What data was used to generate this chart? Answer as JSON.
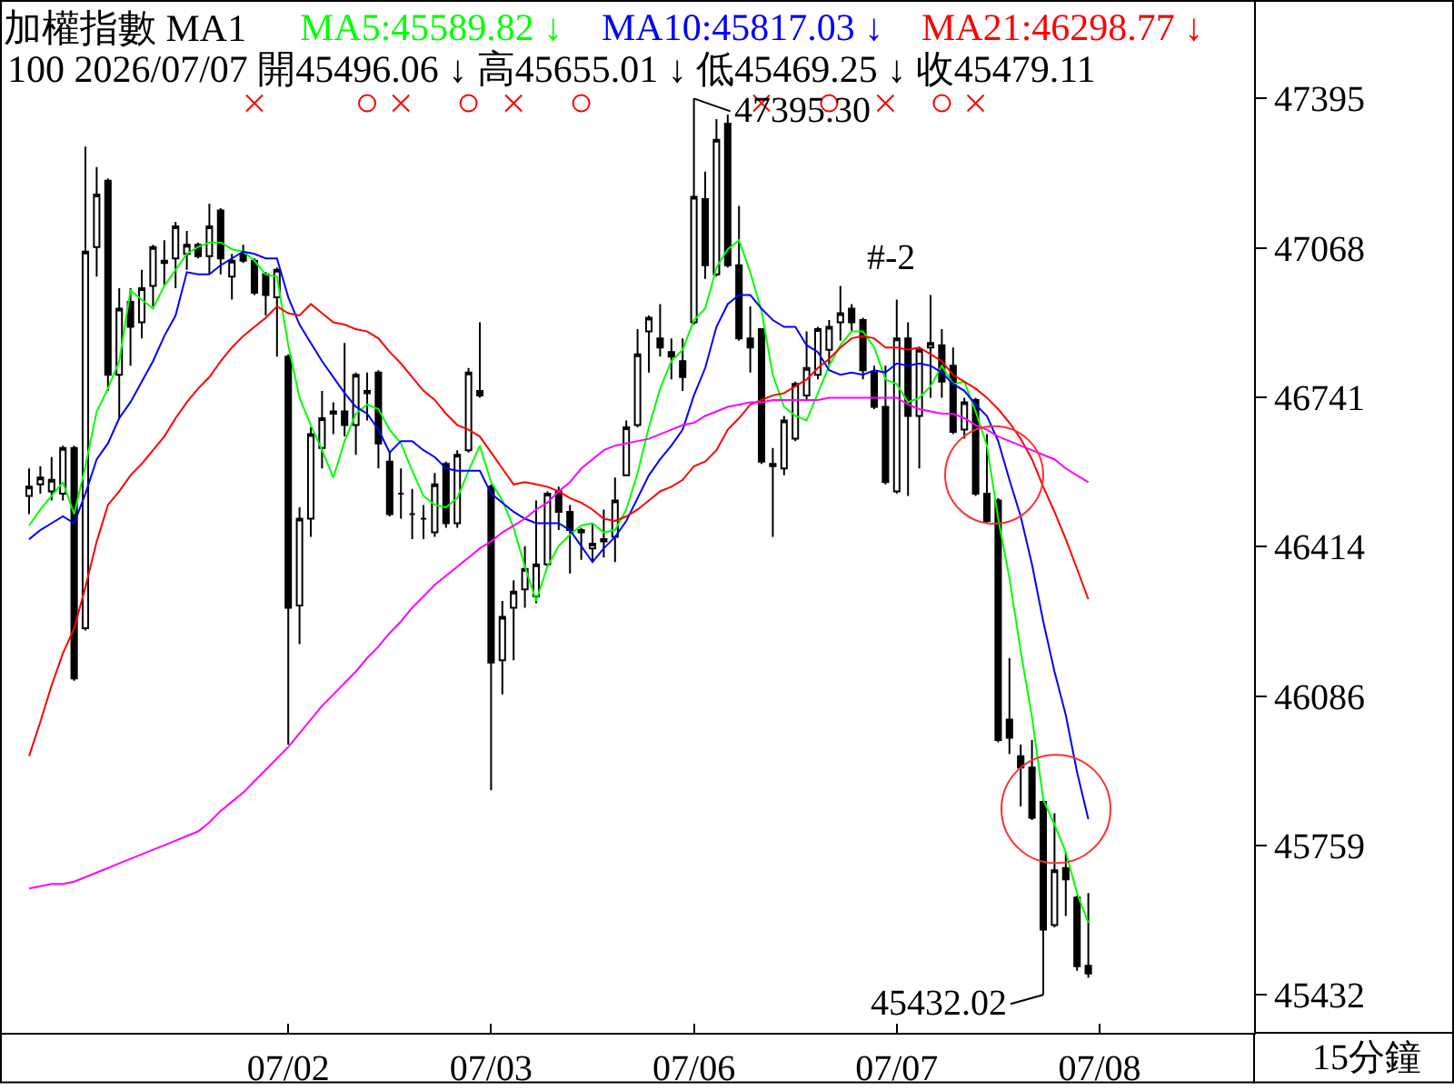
{
  "chart_data": {
    "type": "candlestick",
    "title": "加權指數 MA1",
    "subtitle": "100 2026/07/07 開45496.06 ↓ 高45655.01 ↓ 低45469.25 ↓ 收45479.11",
    "categories": [
      null,
      null,
      null,
      null,
      null,
      null,
      null,
      null,
      null,
      null,
      null,
      null,
      null,
      null,
      null,
      null,
      null,
      null,
      null,
      null,
      null,
      null,
      null,
      "07/02",
      null,
      null,
      null,
      null,
      null,
      null,
      null,
      null,
      null,
      null,
      null,
      null,
      null,
      null,
      null,
      null,
      null,
      "07/03",
      null,
      null,
      null,
      null,
      null,
      null,
      null,
      null,
      null,
      null,
      null,
      null,
      null,
      null,
      null,
      null,
      null,
      "07/06",
      null,
      null,
      null,
      null,
      null,
      null,
      null,
      null,
      null,
      null,
      null,
      null,
      null,
      null,
      null,
      null,
      null,
      "07/07",
      null,
      null,
      null,
      null,
      null,
      null,
      null,
      null,
      null,
      null,
      null,
      null,
      null,
      null,
      null,
      null,
      null,
      "07/08"
    ],
    "color": "#000000",
    "ohlc": [
      [
        46525,
        46585,
        46485,
        46545
      ],
      [
        46550,
        46590,
        46530,
        46565
      ],
      [
        46535,
        46610,
        46515,
        46560
      ],
      [
        46530,
        46635,
        46515,
        46630
      ],
      [
        46630,
        46635,
        46120,
        46125
      ],
      [
        46235,
        47290,
        46230,
        47060
      ],
      [
        47070,
        47245,
        47005,
        47185
      ],
      [
        47215,
        47220,
        46755,
        46790
      ],
      [
        46790,
        46980,
        46695,
        46935
      ],
      [
        46950,
        46980,
        46810,
        46895
      ],
      [
        46905,
        47020,
        46870,
        46980
      ],
      [
        46985,
        47075,
        46940,
        47070
      ],
      [
        47035,
        47085,
        46985,
        47040
      ],
      [
        47045,
        47125,
        46980,
        47115
      ],
      [
        47055,
        47105,
        47020,
        47075
      ],
      [
        47075,
        47080,
        47045,
        47050
      ],
      [
        47050,
        47165,
        47010,
        47115
      ],
      [
        47150,
        47155,
        47010,
        47045
      ],
      [
        47005,
        47055,
        46955,
        47040
      ],
      [
        47055,
        47075,
        47035,
        47040
      ],
      [
        47040,
        47045,
        46965,
        46970
      ],
      [
        47010,
        47015,
        46920,
        46965
      ],
      [
        46960,
        47025,
        46830,
        47020
      ],
      [
        46830,
        46835,
        45980,
        46280
      ],
      [
        46285,
        46500,
        46200,
        46475
      ],
      [
        46475,
        46675,
        46435,
        46660
      ],
      [
        46630,
        46755,
        46585,
        46695
      ],
      [
        46705,
        46730,
        46660,
        46710
      ],
      [
        46710,
        46860,
        46655,
        46680
      ],
      [
        46680,
        46795,
        46615,
        46790
      ],
      [
        46750,
        46795,
        46690,
        46755
      ],
      [
        46795,
        46800,
        46585,
        46640
      ],
      [
        46600,
        46620,
        46480,
        46485
      ],
      [
        46530,
        46585,
        46475,
        46530
      ],
      [
        46485,
        46540,
        46430,
        46485
      ],
      [
        46475,
        46505,
        46430,
        46475
      ],
      [
        46445,
        46575,
        46435,
        46550
      ],
      [
        46595,
        46600,
        46455,
        46465
      ],
      [
        46465,
        46625,
        46455,
        46615
      ],
      [
        46625,
        46805,
        46620,
        46795
      ],
      [
        46755,
        46905,
        46740,
        46745
      ],
      [
        46545,
        46550,
        45880,
        46160
      ],
      [
        46165,
        46295,
        46090,
        46260
      ],
      [
        46280,
        46340,
        46165,
        46315
      ],
      [
        46320,
        46415,
        46280,
        46365
      ],
      [
        46305,
        46515,
        46290,
        46375
      ],
      [
        46375,
        46535,
        46370,
        46530
      ],
      [
        46535,
        46545,
        46450,
        46490
      ],
      [
        46490,
        46505,
        46355,
        46450
      ],
      [
        46450,
        46455,
        46385,
        46445
      ],
      [
        46410,
        46465,
        46380,
        46420
      ],
      [
        46425,
        46495,
        46390,
        46430
      ],
      [
        46435,
        46565,
        46380,
        46515
      ],
      [
        46570,
        46690,
        46570,
        46675
      ],
      [
        46680,
        46890,
        46675,
        46835
      ],
      [
        46885,
        46920,
        46795,
        46915
      ],
      [
        46870,
        46945,
        46830,
        46850
      ],
      [
        46840,
        46870,
        46780,
        46830
      ],
      [
        46820,
        46870,
        46755,
        46785
      ],
      [
        46905,
        47395.3,
        46900,
        47180
      ],
      [
        47175,
        47235,
        47000,
        47030
      ],
      [
        47010,
        47350,
        47005,
        47305
      ],
      [
        47340,
        47360,
        47025,
        47030
      ],
      [
        47030,
        47160,
        46865,
        46870
      ],
      [
        46870,
        46940,
        46795,
        46850
      ],
      [
        46890,
        46890,
        46595,
        46600
      ],
      [
        46595,
        46630,
        46435,
        46590
      ],
      [
        46585,
        46700,
        46570,
        46690
      ],
      [
        46650,
        46775,
        46645,
        46770
      ],
      [
        46745,
        46885,
        46735,
        46805
      ],
      [
        46790,
        46895,
        46780,
        46890
      ],
      [
        46845,
        46910,
        46810,
        46895
      ],
      [
        46905,
        46985,
        46865,
        46925
      ],
      [
        46935,
        46945,
        46885,
        46905
      ],
      [
        46910,
        46915,
        46780,
        46800
      ],
      [
        46795,
        46810,
        46715,
        46720
      ],
      [
        46720,
        46810,
        46550,
        46555
      ],
      [
        46535,
        46955,
        46530,
        46870
      ],
      [
        46870,
        46905,
        46525,
        46700
      ],
      [
        46700,
        46850,
        46585,
        46845
      ],
      [
        46850,
        46965,
        46740,
        46860
      ],
      [
        46855,
        46890,
        46740,
        46775
      ],
      [
        46810,
        46850,
        46660,
        46665
      ],
      [
        46670,
        46740,
        46650,
        46730
      ],
      [
        46735,
        46740,
        46525,
        46530
      ],
      [
        46530,
        46660,
        46465,
        46470
      ],
      [
        46515,
        46520,
        45985,
        45990
      ],
      [
        46035,
        46170,
        45960,
        45995
      ],
      [
        45955,
        45980,
        45845,
        45930
      ],
      [
        45930,
        45990,
        45815,
        45820
      ],
      [
        45855,
        45860,
        45432.02,
        45575
      ],
      [
        45585,
        45830,
        45580,
        45705
      ],
      [
        45710,
        45745,
        45605,
        45685
      ],
      [
        45645,
        45650,
        45485,
        45495
      ],
      [
        45496.06,
        45655.01,
        45469.25,
        45479.11
      ],
      null
    ],
    "series": [
      {
        "type": "line",
        "name": "MA5:45589.82 ↓",
        "color": "#00ff00",
        "values": [
          46460,
          46495,
          46525,
          46555,
          46485,
          46590,
          46710,
          46760,
          46820,
          46975,
          46955,
          46935,
          46985,
          47020,
          47055,
          47070,
          47080,
          47080,
          47065,
          47060,
          47040,
          47010,
          47005,
          46855,
          46740,
          46680,
          46625,
          46565,
          46645,
          46705,
          46725,
          46715,
          46670,
          46640,
          46580,
          46525,
          46505,
          46500,
          46520,
          46580,
          46635,
          46555,
          46515,
          46455,
          46370,
          46295,
          46370,
          46415,
          46440,
          46460,
          46465,
          46445,
          46450,
          46495,
          46575,
          46675,
          46760,
          46820,
          46845,
          46910,
          46935,
          47025,
          47065,
          47085,
          47015,
          46930,
          46790,
          46720,
          46700,
          46690,
          46750,
          46810,
          46855,
          46885,
          46885,
          46850,
          46780,
          46770,
          46730,
          46740,
          46765,
          46810,
          46770,
          46775,
          46710,
          46635,
          46475,
          46345,
          46185,
          46040,
          45860,
          45805,
          45745,
          45655,
          45589.82,
          null
        ]
      },
      {
        "type": "line",
        "name": "MA10:45817.03 ↓",
        "color": "#0000ff",
        "values": [
          46430,
          46450,
          46465,
          46480,
          46465,
          46530,
          46605,
          46640,
          46695,
          46730,
          46775,
          46820,
          46875,
          46920,
          47015,
          47010,
          47010,
          47030,
          47045,
          47060,
          47055,
          47045,
          47045,
          46960,
          46900,
          46860,
          46820,
          46785,
          46750,
          46720,
          46705,
          46670,
          46620,
          46645,
          46645,
          46625,
          46610,
          46585,
          46580,
          46580,
          46580,
          46530,
          46510,
          46490,
          46475,
          46465,
          46465,
          46465,
          46450,
          46415,
          46380,
          46410,
          46435,
          46470,
          46520,
          46570,
          46605,
          46635,
          46670,
          46745,
          46805,
          46895,
          46945,
          46965,
          46965,
          46935,
          46910,
          46895,
          46895,
          46855,
          46840,
          46800,
          46790,
          46795,
          46790,
          46800,
          46795,
          46815,
          46810,
          46815,
          46810,
          46795,
          46770,
          46755,
          46725,
          46700,
          46645,
          46560,
          46480,
          46375,
          46250,
          46140,
          46045,
          45920,
          45817.03,
          null
        ]
      },
      {
        "type": "line",
        "name": "MA21:46298.77 ↓",
        "color": "#ff0000",
        "values": [
          45955,
          46030,
          46110,
          46180,
          46235,
          46325,
          46425,
          46505,
          46535,
          46570,
          46595,
          46625,
          46655,
          46695,
          46730,
          46760,
          46785,
          46820,
          46850,
          46875,
          46895,
          46915,
          46940,
          46925,
          46920,
          46945,
          46925,
          46905,
          46900,
          46890,
          46885,
          46870,
          46840,
          46815,
          46785,
          46755,
          46735,
          46705,
          46680,
          46670,
          46655,
          46620,
          46585,
          46550,
          46555,
          46550,
          46545,
          46535,
          46520,
          46510,
          46495,
          46475,
          46470,
          46480,
          46495,
          46515,
          46535,
          46545,
          46560,
          46590,
          46600,
          46625,
          46670,
          46695,
          46725,
          46735,
          46745,
          46750,
          46765,
          46780,
          46805,
          46825,
          46850,
          46870,
          46875,
          46870,
          46850,
          46850,
          46845,
          46850,
          46835,
          46820,
          46790,
          46775,
          46760,
          46740,
          46715,
          46685,
          46650,
          46605,
          46545,
          46490,
          46430,
          46365,
          46298.77,
          null
        ]
      },
      {
        "type": "line",
        "color": "#ff00ff",
        "values": [
          45665,
          45670,
          45675,
          45675,
          45680,
          45690,
          45700,
          45710,
          45720,
          45730,
          45740,
          45750,
          45760,
          45770,
          45780,
          45790,
          45810,
          45835,
          45855,
          45875,
          45900,
          45925,
          45950,
          45975,
          46005,
          46035,
          46065,
          46090,
          46115,
          46140,
          46170,
          46195,
          46225,
          46250,
          46280,
          46305,
          46330,
          46350,
          46370,
          46390,
          46410,
          46425,
          46445,
          46460,
          46475,
          46495,
          46510,
          46535,
          46555,
          46585,
          46605,
          46625,
          46635,
          46640,
          46645,
          46650,
          46660,
          46670,
          46680,
          46685,
          46700,
          46710,
          46720,
          46725,
          46730,
          46730,
          46735,
          46735,
          46735,
          46735,
          46735,
          46740,
          46740,
          46740,
          46740,
          46740,
          46740,
          46740,
          46725,
          46715,
          46710,
          46705,
          46705,
          46695,
          46680,
          46670,
          46655,
          46645,
          46635,
          46625,
          46615,
          46605,
          46585,
          46570,
          46555,
          null
        ]
      },
      {
        "type": "scatter",
        "marker": "cross",
        "color": "#ff0000",
        "values": [
          null,
          null,
          null,
          null,
          null,
          null,
          null,
          null,
          null,
          null,
          null,
          null,
          null,
          null,
          null,
          null,
          null,
          null,
          null,
          null,
          47385,
          null,
          null,
          null,
          null,
          null,
          null,
          null,
          null,
          null,
          null,
          null,
          null,
          47385,
          null,
          null,
          null,
          null,
          null,
          null,
          null,
          null,
          null,
          47385,
          null,
          null,
          null,
          null,
          null,
          null,
          null,
          null,
          null,
          null,
          null,
          null,
          null,
          null,
          null,
          null,
          null,
          null,
          null,
          null,
          null,
          47385,
          null,
          null,
          null,
          null,
          null,
          null,
          null,
          null,
          null,
          null,
          47385,
          null,
          null,
          null,
          null,
          null,
          null,
          null,
          47385,
          null,
          null,
          null,
          null,
          null,
          null,
          null,
          null,
          null,
          null,
          null
        ]
      },
      {
        "type": "scatter",
        "marker": "circle",
        "color": "#ff0000",
        "values": [
          null,
          null,
          null,
          null,
          null,
          null,
          null,
          null,
          null,
          null,
          null,
          null,
          null,
          null,
          null,
          null,
          null,
          null,
          null,
          null,
          null,
          null,
          null,
          null,
          null,
          null,
          null,
          null,
          null,
          null,
          47385,
          null,
          null,
          null,
          null,
          null,
          null,
          null,
          null,
          47385,
          null,
          null,
          null,
          null,
          null,
          null,
          null,
          null,
          null,
          47385,
          null,
          null,
          null,
          null,
          null,
          null,
          null,
          null,
          null,
          null,
          null,
          null,
          null,
          null,
          null,
          null,
          null,
          null,
          null,
          null,
          null,
          47385,
          null,
          null,
          null,
          null,
          null,
          null,
          null,
          null,
          null,
          47385,
          null,
          null,
          null,
          null,
          null,
          null,
          null,
          null,
          null,
          null,
          null,
          null,
          null,
          null
        ]
      }
    ],
    "ylim": [
      45349,
      47607
    ],
    "yticks": [
      45432,
      45759,
      46086,
      46414,
      46741,
      47068,
      47395
    ],
    "annotations": [
      "47395.30",
      "45432.02",
      "#-2",
      "15分鐘"
    ]
  }
}
